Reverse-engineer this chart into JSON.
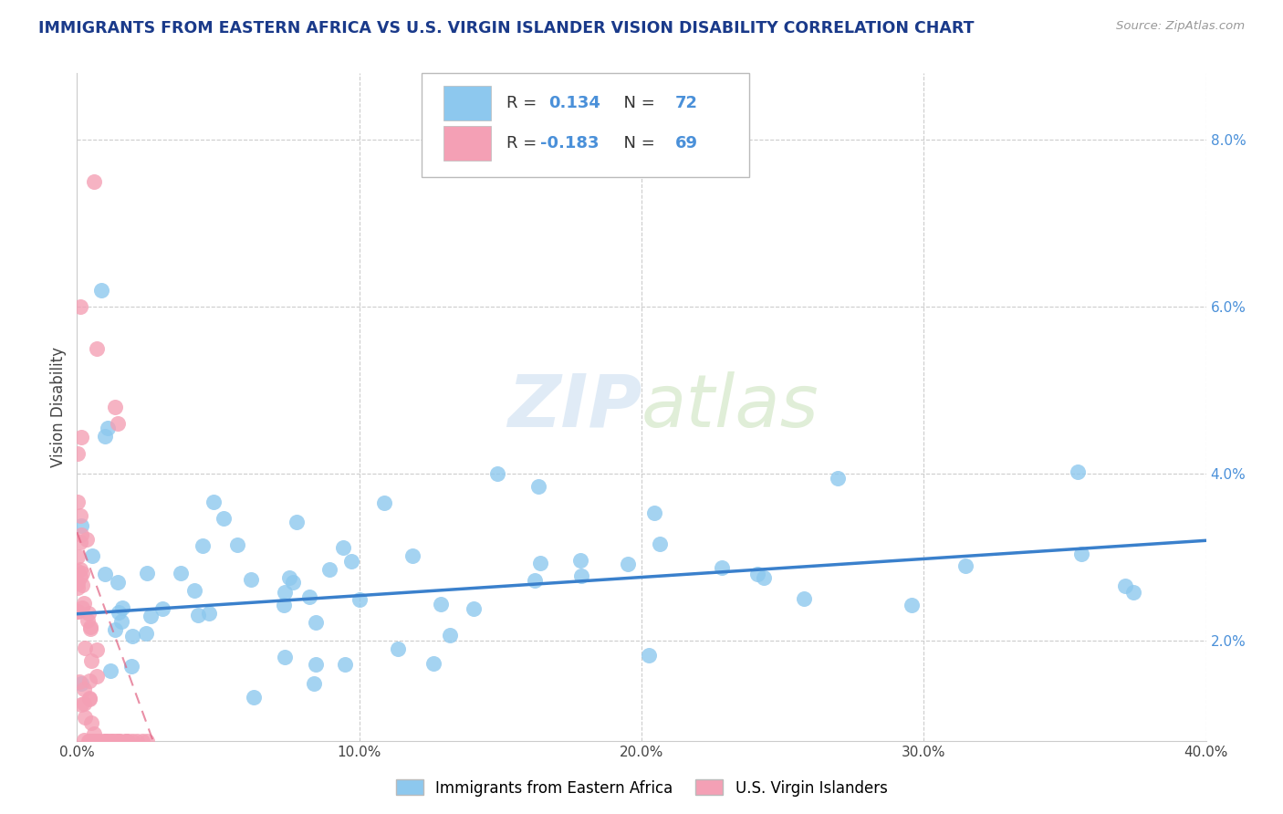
{
  "title": "IMMIGRANTS FROM EASTERN AFRICA VS U.S. VIRGIN ISLANDER VISION DISABILITY CORRELATION CHART",
  "source": "Source: ZipAtlas.com",
  "ylabel": "Vision Disability",
  "xlim": [
    0.0,
    0.4
  ],
  "ylim": [
    0.008,
    0.088
  ],
  "xtick_vals": [
    0.0,
    0.1,
    0.2,
    0.3,
    0.4
  ],
  "xtick_labels": [
    "0.0%",
    "10.0%",
    "20.0%",
    "30.0%",
    "40.0%"
  ],
  "yticks_right": [
    0.02,
    0.04,
    0.06,
    0.08
  ],
  "ytick_labels_right": [
    "2.0%",
    "4.0%",
    "6.0%",
    "8.0%"
  ],
  "blue_R": 0.134,
  "blue_N": 72,
  "pink_R": -0.183,
  "pink_N": 69,
  "blue_color": "#8DC8EE",
  "pink_color": "#F4A0B5",
  "blue_line_color": "#3A80CC",
  "pink_line_color": "#E06080",
  "background_color": "#FFFFFF",
  "grid_color": "#CCCCCC",
  "title_color": "#1A3A8A",
  "watermark": "ZIPatlas",
  "legend_label_blue": "Immigrants from Eastern Africa",
  "legend_label_pink": "U.S. Virgin Islanders",
  "blue_line_x0": 0.0,
  "blue_line_x1": 0.4,
  "blue_line_y0": 0.0232,
  "blue_line_y1": 0.032,
  "pink_line_x0": 0.0,
  "pink_line_x1": 0.028,
  "pink_line_y0": 0.033,
  "pink_line_y1": 0.007
}
